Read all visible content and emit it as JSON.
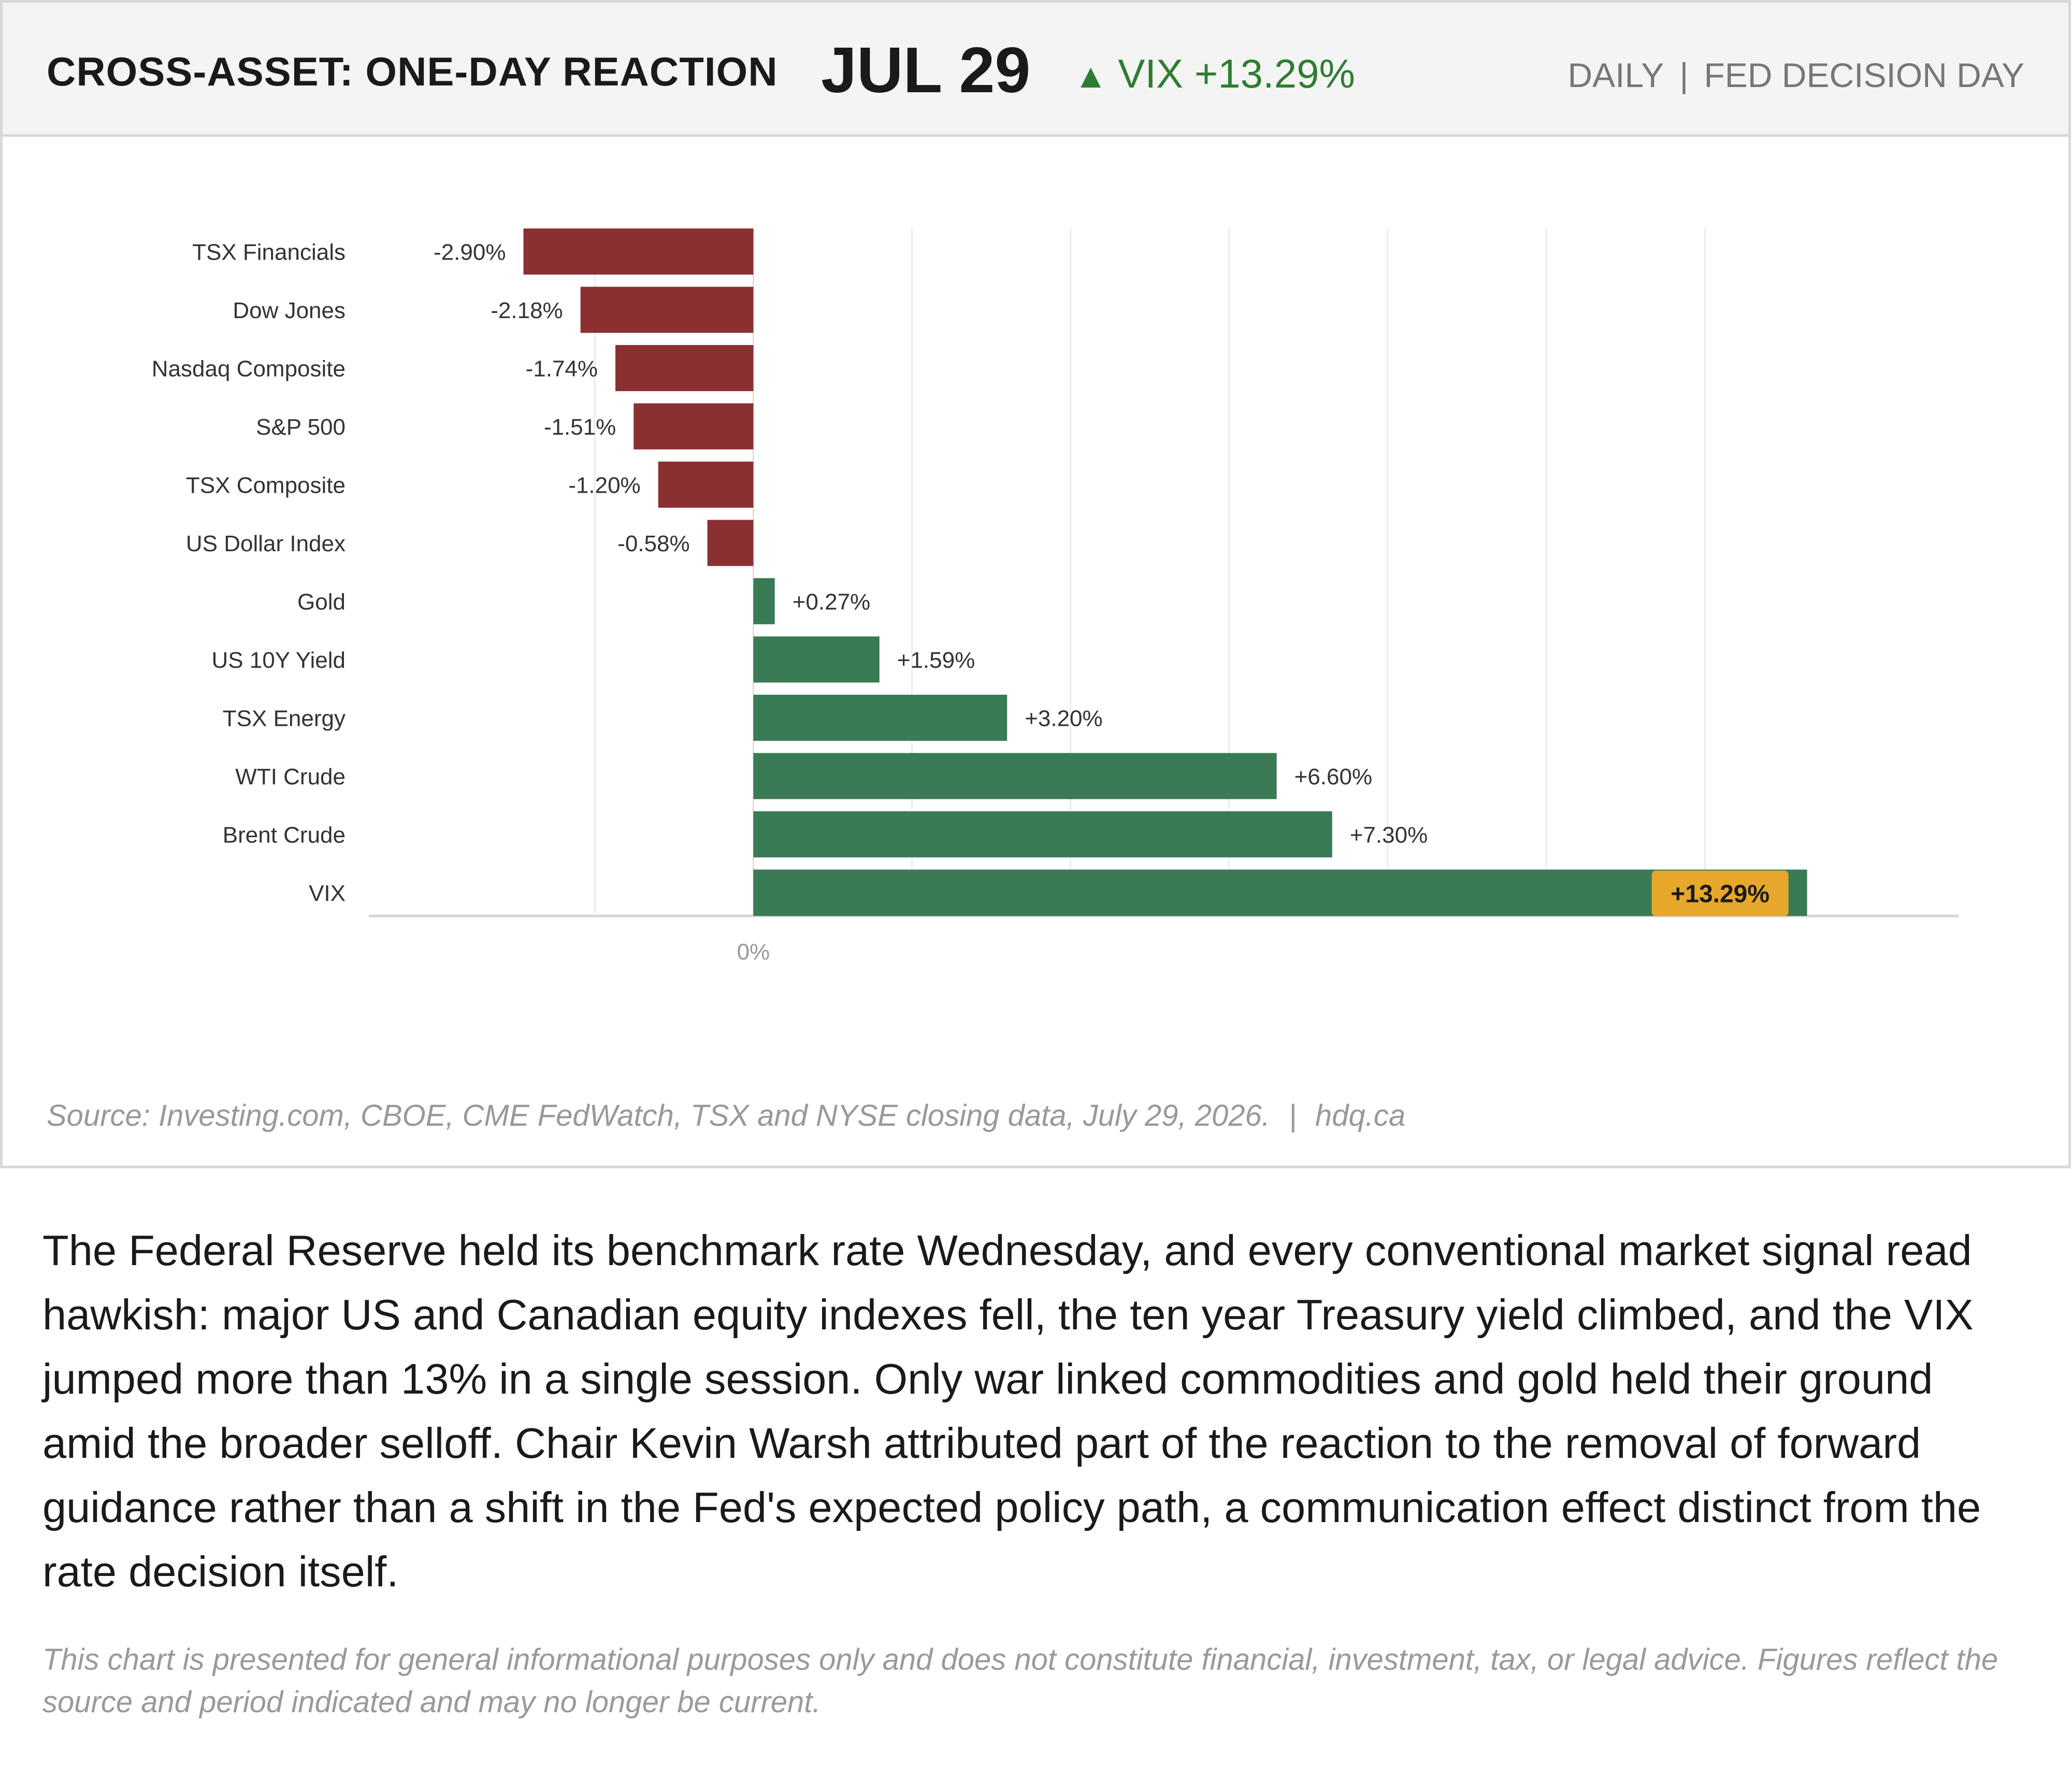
{
  "header": {
    "title": "CROSS-ASSET: ONE-DAY REACTION",
    "date": "JUL 29",
    "vix_arrow": "▲",
    "vix_change": "VIX +13.29%",
    "frequency": "DAILY",
    "separator": "|",
    "event": "FED DECISION DAY"
  },
  "colors": {
    "negative": "#8b3030",
    "positive": "#3a7a55",
    "highlight": "#e6a72a",
    "vix_text": "#2e7d32"
  },
  "chart_data": {
    "type": "bar",
    "orientation": "horizontal",
    "categories": [
      "TSX Financials",
      "Dow Jones",
      "Nasdaq Composite",
      "S&P 500",
      "TSX Composite",
      "US Dollar Index",
      "Gold",
      "US 10Y Yield",
      "TSX Energy",
      "WTI Crude",
      "Brent Crude",
      "VIX"
    ],
    "values": [
      -2.9,
      -2.18,
      -1.74,
      -1.51,
      -1.2,
      -0.58,
      0.27,
      1.59,
      3.2,
      6.6,
      7.3,
      13.29
    ],
    "labels": [
      "-2.90%",
      "-2.18%",
      "-1.74%",
      "-1.51%",
      "-1.20%",
      "-0.58%",
      "+0.27%",
      "+1.59%",
      "+3.20%",
      "+6.60%",
      "+7.30%",
      "+13.29%"
    ],
    "highlight_index": 11,
    "xlim": [
      -4.85,
      15.2
    ],
    "grid_values": [
      -2,
      2,
      4,
      6,
      8,
      10,
      12
    ],
    "zero_label": "0%",
    "grid": true,
    "legend": "none"
  },
  "source": {
    "text": "Source: Investing.com, CBOE, CME FedWatch, TSX and NYSE closing data, July 29, 2026.",
    "separator": "|",
    "site": "hdq.ca"
  },
  "body_text": "The Federal Reserve held its benchmark rate Wednesday, and every conventional market signal read hawkish: major US and Canadian equity indexes fell, the ten year Treasury yield climbed, and the VIX jumped more than 13% in a single session. Only war linked commodities and gold held their ground amid the broader selloff. Chair Kevin Warsh attributed part of the reaction to the removal of forward guidance rather than a shift in the Fed's expected policy path, a communication effect distinct from the rate decision itself.",
  "disclaimer": "This chart is presented for general informational purposes only and does not constitute financial, investment, tax, or legal advice. Figures reflect the source and period indicated and may no longer be current."
}
